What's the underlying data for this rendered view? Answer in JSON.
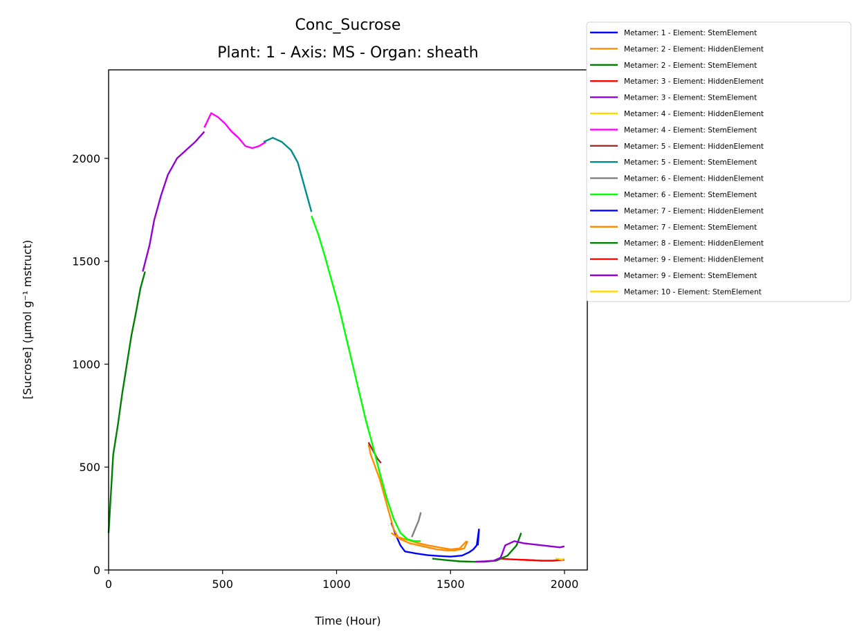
{
  "chart_data": {
    "type": "line",
    "title": "Conc_Sucrose",
    "subtitle": "Plant: 1 - Axis: MS - Organ: sheath",
    "xlabel": "Time (Hour)",
    "ylabel": "[Sucrose] (µmol g⁻¹ mstruct)",
    "xlim": [
      0,
      2100
    ],
    "ylim": [
      0,
      2430
    ],
    "xticks": [
      "0",
      "500",
      "1000",
      "1500",
      "2000"
    ],
    "yticks": [
      "0",
      "500",
      "1000",
      "1500",
      "2000"
    ],
    "grid": false,
    "legend_position": "outside-top-right",
    "series": [
      {
        "name": "Metamer: 1 - Element: StemElement",
        "color": "#0000ff",
        "x": [
          1240,
          1260,
          1280,
          1300,
          1350,
          1400,
          1450,
          1500,
          1550,
          1580,
          1600,
          1615,
          1625
        ],
        "y": [
          230,
          170,
          120,
          90,
          80,
          72,
          68,
          65,
          70,
          85,
          100,
          120,
          200
        ]
      },
      {
        "name": "Metamer: 2 - Element: HiddenElement",
        "color": "#ff8c00",
        "x": [
          1140,
          1150,
          1170,
          1190,
          1210,
          1230,
          1250,
          1270,
          1300,
          1330,
          1360,
          1400,
          1450,
          1500,
          1540,
          1570
        ],
        "y": [
          610,
          560,
          500,
          440,
          360,
          280,
          200,
          160,
          150,
          140,
          130,
          120,
          110,
          100,
          105,
          140
        ]
      },
      {
        "name": "Metamer: 2 - Element: StemElement",
        "color": "#008000",
        "x": [
          0,
          20,
          40,
          60,
          80,
          100,
          120,
          140,
          160
        ],
        "y": [
          180,
          560,
          700,
          860,
          1000,
          1140,
          1250,
          1370,
          1450
        ]
      },
      {
        "name": "Metamer: 3 - Element: HiddenElement",
        "color": "#ff0000",
        "x": [
          1720,
          1760,
          1800,
          1850,
          1900,
          1950,
          2000
        ],
        "y": [
          55,
          52,
          50,
          48,
          45,
          45,
          50
        ]
      },
      {
        "name": "Metamer: 3 - Element: StemElement",
        "color": "#9400d3",
        "x": [
          150,
          180,
          200,
          230,
          260,
          300,
          340,
          380,
          420
        ],
        "y": [
          1450,
          1580,
          1700,
          1820,
          1920,
          2000,
          2040,
          2080,
          2130
        ]
      },
      {
        "name": "Metamer: 4 - Element: HiddenElement",
        "color": "#ffd700",
        "x": [
          1960,
          1980,
          2000
        ],
        "y": [
          55,
          52,
          50
        ]
      },
      {
        "name": "Metamer: 4 - Element: StemElement",
        "color": "#ff00ff",
        "x": [
          420,
          450,
          480,
          510,
          540,
          570,
          600,
          630,
          660,
          690
        ],
        "y": [
          2150,
          2220,
          2200,
          2170,
          2130,
          2100,
          2060,
          2050,
          2060,
          2080
        ]
      },
      {
        "name": "Metamer: 5 - Element: HiddenElement",
        "color": "#a52a2a",
        "x": [
          1140,
          1160,
          1180,
          1195
        ],
        "y": [
          620,
          580,
          540,
          520
        ]
      },
      {
        "name": "Metamer: 5 - Element: StemElement",
        "color": "#008b8b",
        "x": [
          680,
          720,
          760,
          800,
          830,
          850,
          870,
          890
        ],
        "y": [
          2080,
          2100,
          2080,
          2040,
          1980,
          1900,
          1820,
          1740
        ]
      },
      {
        "name": "Metamer: 6 - Element: HiddenElement",
        "color": "#808080",
        "x": [
          1330,
          1345,
          1360,
          1370
        ],
        "y": [
          160,
          200,
          240,
          280
        ]
      },
      {
        "name": "Metamer: 6 - Element: StemElement",
        "color": "#00ff00",
        "x": [
          890,
          920,
          950,
          980,
          1010,
          1040,
          1070,
          1100,
          1130,
          1160,
          1190,
          1220,
          1250,
          1280,
          1310,
          1340,
          1370
        ],
        "y": [
          1720,
          1630,
          1520,
          1400,
          1280,
          1140,
          1000,
          860,
          720,
          600,
          470,
          350,
          250,
          180,
          150,
          140,
          140
        ]
      },
      {
        "name": "Metamer: 7 - Element: HiddenElement",
        "color": "#0000ff",
        "x": [
          1620,
          1625
        ],
        "y": [
          120,
          200
        ]
      },
      {
        "name": "Metamer: 7 - Element: StemElement",
        "color": "#ff8c00",
        "x": [
          1240,
          1280,
          1320,
          1360,
          1400,
          1440,
          1480,
          1520,
          1560,
          1575
        ],
        "y": [
          180,
          150,
          130,
          120,
          110,
          100,
          95,
          95,
          105,
          140
        ]
      },
      {
        "name": "Metamer: 8 - Element: HiddenElement",
        "color": "#008000",
        "x": [
          1420,
          1480,
          1540,
          1600,
          1650,
          1700,
          1750,
          1790,
          1810
        ],
        "y": [
          55,
          48,
          42,
          40,
          40,
          45,
          70,
          120,
          180
        ]
      },
      {
        "name": "Metamer: 9 - Element: HiddenElement",
        "color": "#ff0000",
        "x": [
          1800,
          1850,
          1900,
          1950,
          2000
        ],
        "y": [
          50,
          48,
          45,
          45,
          50
        ]
      },
      {
        "name": "Metamer: 9 - Element: StemElement",
        "color": "#9400d3",
        "x": [
          1610,
          1650,
          1690,
          1720,
          1740,
          1780,
          1820,
          1860,
          1900,
          1940,
          1980,
          2000
        ],
        "y": [
          40,
          42,
          45,
          60,
          120,
          140,
          130,
          125,
          120,
          115,
          110,
          115
        ]
      },
      {
        "name": "Metamer: 10 - Element: StemElement",
        "color": "#ffd700",
        "x": [
          1970,
          1985,
          2000
        ],
        "y": [
          55,
          50,
          55
        ]
      }
    ]
  }
}
